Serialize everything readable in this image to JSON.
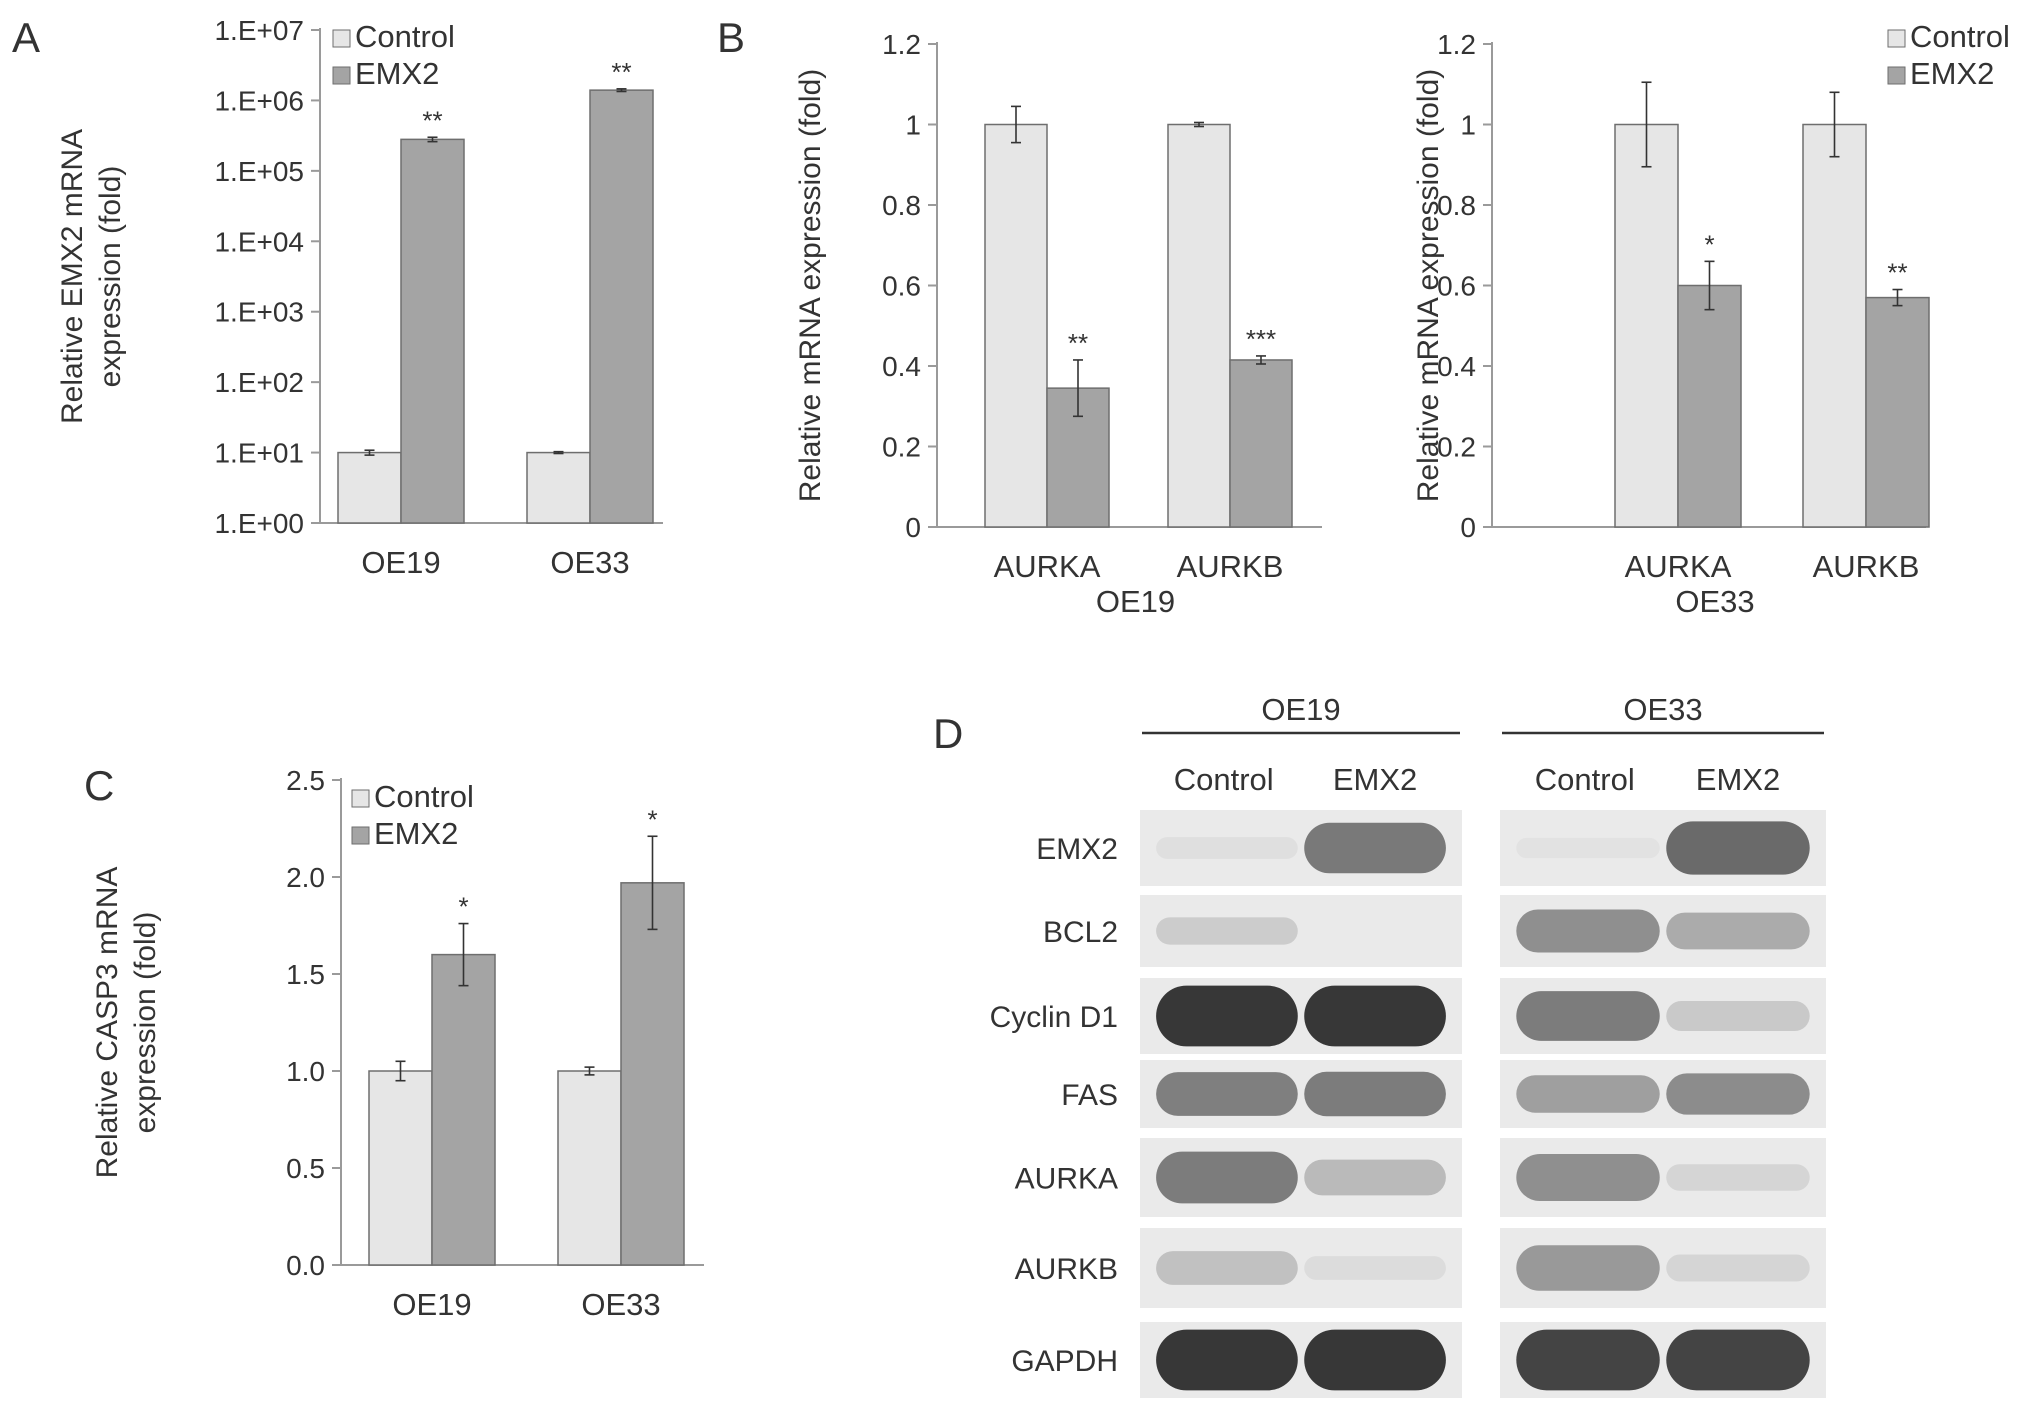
{
  "panel_labels": {
    "a": "A",
    "b": "B",
    "c": "C",
    "d": "D"
  },
  "colors": {
    "control_fill": "#e6e6e6",
    "emx2_fill": "#a4a4a4",
    "bar_stroke": "#6e6e6e",
    "axis": "#9a9a9a",
    "text": "#333333"
  },
  "chart_data": [
    {
      "id": "A",
      "type": "bar",
      "scale": "log",
      "categories": [
        "OE19",
        "OE33"
      ],
      "ylabel": [
        "Relative EMX2 mRNA",
        "expression (fold)"
      ],
      "ylim": [
        1,
        10000000
      ],
      "yticks": [
        {
          "v": 1,
          "label": "1.E+00"
        },
        {
          "v": 10,
          "label": "1.E+01"
        },
        {
          "v": 100,
          "label": "1.E+02"
        },
        {
          "v": 1000,
          "label": "1.E+03"
        },
        {
          "v": 10000,
          "label": "1.E+04"
        },
        {
          "v": 100000,
          "label": "1.E+05"
        },
        {
          "v": 1000000,
          "label": "1.E+06"
        },
        {
          "v": 10000000,
          "label": "1.E+07"
        }
      ],
      "legend": [
        "Control",
        "EMX2"
      ],
      "series": [
        {
          "name": "Control",
          "values": [
            10,
            10
          ],
          "errors": [
            0.8,
            0.3
          ],
          "sig": [
            "",
            ""
          ]
        },
        {
          "name": "EMX2",
          "values": [
            280000,
            1400000
          ],
          "errors": [
            20000,
            60000
          ],
          "sig": [
            "**",
            "**"
          ]
        }
      ]
    },
    {
      "id": "B1",
      "type": "bar",
      "scale": "linear",
      "categories": [
        "AURKA",
        "AURKB"
      ],
      "group_label": "OE19",
      "ylabel": [
        "Relative mRNA expression (fold)"
      ],
      "ylim": [
        0,
        1.2
      ],
      "yticks": [
        {
          "v": 0,
          "label": "0"
        },
        {
          "v": 0.2,
          "label": "0.2"
        },
        {
          "v": 0.4,
          "label": "0.4"
        },
        {
          "v": 0.6,
          "label": "0.6"
        },
        {
          "v": 0.8,
          "label": "0.8"
        },
        {
          "v": 1,
          "label": "1"
        },
        {
          "v": 1.2,
          "label": "1.2"
        }
      ],
      "legend": [],
      "series": [
        {
          "name": "Control",
          "values": [
            1.0,
            1.0
          ],
          "errors": [
            0.045,
            0.005
          ],
          "sig": [
            "",
            ""
          ]
        },
        {
          "name": "EMX2",
          "values": [
            0.345,
            0.415
          ],
          "errors": [
            0.07,
            0.01
          ],
          "sig": [
            "**",
            "***"
          ]
        }
      ]
    },
    {
      "id": "B2",
      "type": "bar",
      "scale": "linear",
      "categories": [
        "AURKA",
        "AURKB"
      ],
      "group_label": "OE33",
      "ylabel": [
        "Relative mRNA expression (fold)"
      ],
      "ylim": [
        0,
        1.2
      ],
      "yticks": [
        {
          "v": 0,
          "label": "0"
        },
        {
          "v": 0.2,
          "label": "0.2"
        },
        {
          "v": 0.4,
          "label": "0.4"
        },
        {
          "v": 0.6,
          "label": "0.6"
        },
        {
          "v": 0.8,
          "label": "0.8"
        },
        {
          "v": 1,
          "label": "1"
        },
        {
          "v": 1.2,
          "label": "1.2"
        }
      ],
      "legend": [
        "Control",
        "EMX2"
      ],
      "series": [
        {
          "name": "Control",
          "values": [
            1.0,
            1.0
          ],
          "errors": [
            0.105,
            0.08
          ],
          "sig": [
            "",
            ""
          ]
        },
        {
          "name": "EMX2",
          "values": [
            0.6,
            0.57
          ],
          "errors": [
            0.06,
            0.02
          ],
          "sig": [
            "*",
            "**"
          ]
        }
      ]
    },
    {
      "id": "C",
      "type": "bar",
      "scale": "linear",
      "categories": [
        "OE19",
        "OE33"
      ],
      "ylabel": [
        "Relative CASP3 mRNA",
        "expression (fold)"
      ],
      "ylim": [
        0,
        2.5
      ],
      "yticks": [
        {
          "v": 0,
          "label": "0.0"
        },
        {
          "v": 0.5,
          "label": "0.5"
        },
        {
          "v": 1,
          "label": "1.0"
        },
        {
          "v": 1.5,
          "label": "1.5"
        },
        {
          "v": 2,
          "label": "2.0"
        },
        {
          "v": 2.5,
          "label": "2.5"
        }
      ],
      "legend": [
        "Control",
        "EMX2"
      ],
      "series": [
        {
          "name": "Control",
          "values": [
            1.0,
            1.0
          ],
          "errors": [
            0.05,
            0.02
          ],
          "sig": [
            "",
            ""
          ]
        },
        {
          "name": "EMX2",
          "values": [
            1.6,
            1.97
          ],
          "errors": [
            0.16,
            0.24
          ],
          "sig": [
            "*",
            "*"
          ]
        }
      ]
    }
  ],
  "blot": {
    "cell_lines": [
      "OE19",
      "OE33"
    ],
    "conditions": [
      "Control",
      "EMX2"
    ],
    "proteins": [
      {
        "name": "EMX2",
        "intensity": [
          [
            0.06,
            0.72
          ],
          [
            0.03,
            0.78
          ]
        ]
      },
      {
        "name": "BCL2",
        "intensity": [
          [
            0.22,
            0.0
          ],
          [
            0.6,
            0.45
          ]
        ]
      },
      {
        "name": "Cyclin D1",
        "intensity": [
          [
            1.0,
            1.0
          ],
          [
            0.7,
            0.25
          ]
        ]
      },
      {
        "name": "FAS",
        "intensity": [
          [
            0.68,
            0.7
          ],
          [
            0.52,
            0.62
          ]
        ]
      },
      {
        "name": "AURKA",
        "intensity": [
          [
            0.7,
            0.35
          ],
          [
            0.6,
            0.15
          ]
        ]
      },
      {
        "name": "AURKB",
        "intensity": [
          [
            0.3,
            0.08
          ],
          [
            0.55,
            0.15
          ]
        ]
      },
      {
        "name": "GAPDH",
        "intensity": [
          [
            1.0,
            1.0
          ],
          [
            0.95,
            0.95
          ]
        ]
      }
    ]
  }
}
